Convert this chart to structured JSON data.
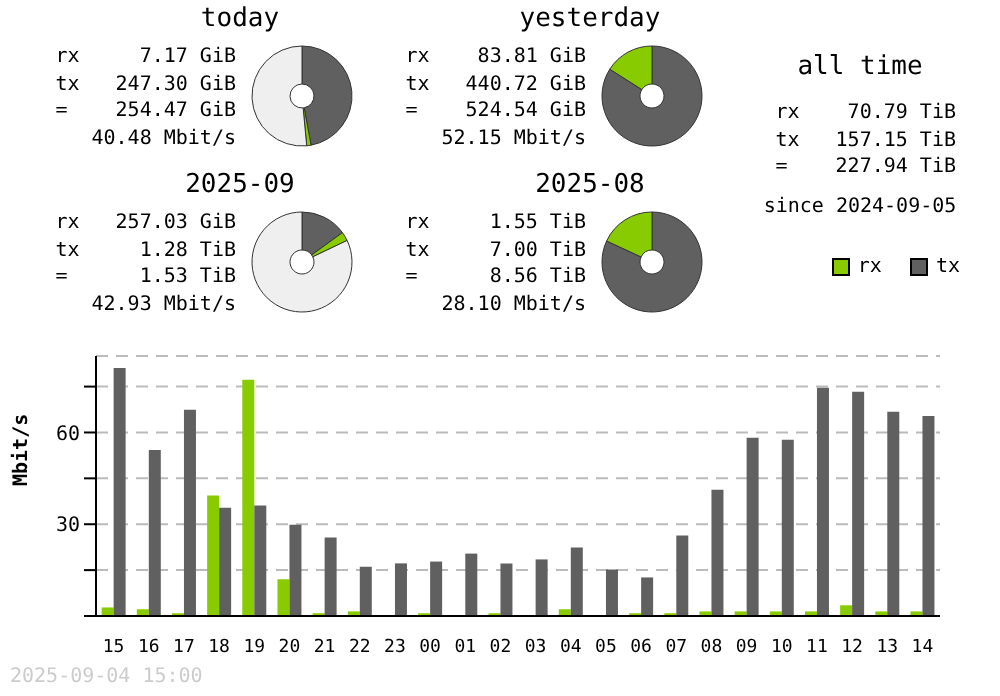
{
  "chart_data": [
    {
      "type": "donut",
      "title": "today",
      "categories": [
        null,
        null,
        null
      ],
      "values": [
        47.1,
        1.4,
        51.5
      ],
      "colors": [
        "#606060",
        "#88cc00",
        "#efefef"
      ],
      "annotations": [
        "rx 7.17 GiB",
        "tx 247.30 GiB",
        "= 254.47 GiB",
        "40.48 Mbit/s"
      ]
    },
    {
      "type": "donut",
      "title": "yesterday",
      "categories": [
        null,
        null,
        null
      ],
      "values": [
        84.0,
        16.0,
        0
      ],
      "colors": [
        "#606060",
        "#88cc00",
        "#efefef"
      ],
      "annotations": [
        "rx 83.81 GiB",
        "tx 440.72 GiB",
        "= 524.54 GiB",
        "52.15 Mbit/s"
      ]
    },
    {
      "type": "other",
      "title": "all time",
      "annotations": [
        "rx 70.79 TiB",
        "tx 157.15 TiB",
        "= 227.94 TiB",
        "since 2024-09-05"
      ]
    },
    {
      "type": "donut",
      "title": "2025-09",
      "categories": [
        null,
        null,
        null
      ],
      "values": [
        15.0,
        2.9,
        82.1
      ],
      "colors": [
        "#606060",
        "#88cc00",
        "#efefef"
      ],
      "annotations": [
        "rx 257.03 GiB",
        "tx 1.28 TiB",
        "= 1.53 TiB",
        "42.93 Mbit/s"
      ]
    },
    {
      "type": "donut",
      "title": "2025-08",
      "categories": [
        null,
        null,
        null
      ],
      "values": [
        81.9,
        18.1,
        0
      ],
      "colors": [
        "#606060",
        "#88cc00",
        "#efefef"
      ],
      "annotations": [
        "rx 1.55 TiB",
        "tx 7.00 TiB",
        "= 8.56 TiB",
        "28.10 Mbit/s"
      ]
    },
    {
      "type": "bar",
      "ylabel": "Mbit/s",
      "categories": [
        "15",
        "16",
        "17",
        "18",
        "19",
        "20",
        "21",
        "22",
        "23",
        "00",
        "01",
        "02",
        "03",
        "04",
        "05",
        "06",
        "07",
        "08",
        "09",
        "10",
        "11",
        "12",
        "13",
        "14"
      ],
      "series": [
        {
          "name": "rx",
          "color": "#88cc00",
          "values": [
            2.8,
            2.2,
            0.9,
            39.4,
            77.2,
            12.0,
            0.9,
            1.5,
            0,
            0.9,
            0,
            0.9,
            0,
            2.2,
            0,
            0.9,
            0.9,
            1.5,
            1.5,
            1.5,
            1.5,
            3.5,
            1.5,
            1.5
          ]
        },
        {
          "name": "tx",
          "color": "#606060",
          "values": [
            81.1,
            54.3,
            67.4,
            35.4,
            36.1,
            29.8,
            25.7,
            16.1,
            17.2,
            17.8,
            20.4,
            17.2,
            18.5,
            22.4,
            15.2,
            12.6,
            26.3,
            41.3,
            58.3,
            57.6,
            74.6,
            73.3,
            66.8,
            65.4
          ]
        }
      ],
      "ylim": [
        0,
        85
      ],
      "yticks": [
        {
          "value": 0,
          "label": null
        },
        {
          "value": 15,
          "label": null
        },
        30,
        {
          "value": 45,
          "label": null
        },
        60,
        {
          "value": 75,
          "label": null
        }
      ],
      "grid": "y",
      "legend": "top right",
      "annotations": [
        "2025-09-04 15:00"
      ]
    }
  ]
}
